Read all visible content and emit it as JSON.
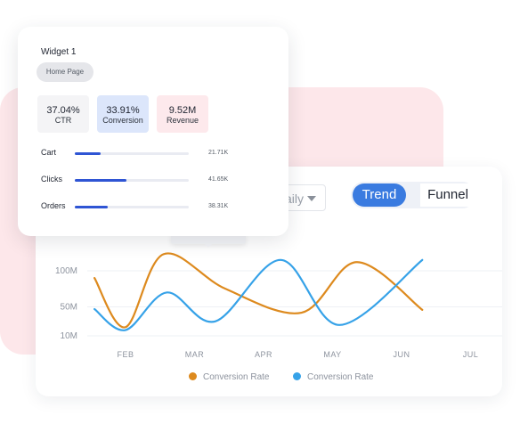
{
  "widget": {
    "title": "Widget 1",
    "page_pill": "Home Page",
    "metrics": [
      {
        "value": "37.04%",
        "label": "CTR"
      },
      {
        "value": "33.91%",
        "label": "Conversion"
      },
      {
        "value": "9.52M",
        "label": "Revenue"
      }
    ],
    "rows": [
      {
        "label": "Cart",
        "value": "21.71K",
        "progress": 0.23
      },
      {
        "label": "Clicks",
        "value": "41.65K",
        "progress": 0.45
      },
      {
        "label": "Orders",
        "value": "38.31K",
        "progress": 0.29
      }
    ]
  },
  "controls": {
    "period_value": "Daily",
    "tabs": {
      "trend": "Trend",
      "funnel": "Funnel"
    },
    "active_tab": "Trend"
  },
  "colors": {
    "series_orange": "#dd8a1e",
    "series_blue": "#36a2e8",
    "accent": "#3a7be0",
    "progress": "#2f55d4"
  },
  "chart_data": {
    "type": "line",
    "categories": [
      "FEB",
      "MAR",
      "APR",
      "MAY",
      "JUN",
      "JUL"
    ],
    "y_ticks": [
      {
        "label": "100M",
        "value": 100
      },
      {
        "label": "50M",
        "value": 50
      },
      {
        "label": "10M",
        "value": 10
      }
    ],
    "ylim": [
      10,
      100
    ],
    "series": [
      {
        "name": "Conversion Rate",
        "color": "#dd8a1e",
        "x": [
          -0.45,
          0,
          0.55,
          1.45,
          2.55,
          3.35,
          4.3
        ],
        "y": [
          90,
          22,
          123,
          75,
          42,
          112,
          46
        ]
      },
      {
        "name": "Conversion Rate",
        "color": "#36a2e8",
        "x": [
          -0.45,
          0,
          0.6,
          1.3,
          2.25,
          3.1,
          4.3
        ],
        "y": [
          47,
          18,
          70,
          30,
          115,
          25,
          115
        ]
      }
    ],
    "legend": [
      "Conversion Rate",
      "Conversion Rate"
    ],
    "grid": true,
    "legend_position": "bottom"
  }
}
